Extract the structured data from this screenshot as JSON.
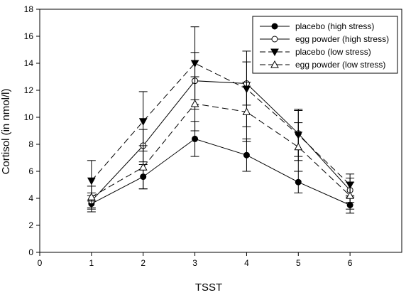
{
  "chart_data": {
    "type": "line",
    "title": "",
    "xlabel": "TSST",
    "ylabel": "Cortisol (in nmol/l)",
    "xlim": [
      0,
      7
    ],
    "ylim": [
      0,
      18
    ],
    "x_ticks": [
      0,
      1,
      2,
      3,
      4,
      5,
      6
    ],
    "y_ticks": [
      0,
      2,
      4,
      6,
      8,
      10,
      12,
      14,
      16,
      18
    ],
    "grid": false,
    "legend_position": "top-right",
    "x": [
      1,
      2,
      3,
      4,
      5,
      6
    ],
    "series": [
      {
        "name": "placebo (high stress)",
        "marker": "filled-circle",
        "line": "solid",
        "values": [
          3.6,
          5.6,
          8.4,
          7.2,
          5.2,
          3.5
        ],
        "error": [
          0.6,
          0.9,
          1.3,
          1.2,
          0.8,
          0.6
        ]
      },
      {
        "name": "egg powder (high stress)",
        "marker": "open-circle",
        "line": "solid",
        "values": [
          3.8,
          7.9,
          12.7,
          12.5,
          8.8,
          4.6
        ],
        "error": [
          0.6,
          1.2,
          2.1,
          1.6,
          1.7,
          0.9
        ]
      },
      {
        "name": "placebo (low stress)",
        "marker": "filled-triangle-down",
        "line": "dashed",
        "values": [
          5.3,
          9.7,
          14.0,
          12.1,
          8.7,
          5.0
        ],
        "error": [
          1.5,
          2.2,
          2.7,
          2.8,
          1.9,
          0.8
        ]
      },
      {
        "name": "egg powder (low stress)",
        "marker": "open-triangle-up",
        "line": "dashed",
        "values": [
          4.1,
          6.3,
          11.0,
          10.4,
          7.8,
          4.2
        ],
        "error": [
          0.8,
          1.6,
          2.0,
          2.2,
          1.8,
          1.0
        ]
      }
    ],
    "colors": {
      "line": "#000000",
      "background": "#ffffff"
    }
  }
}
